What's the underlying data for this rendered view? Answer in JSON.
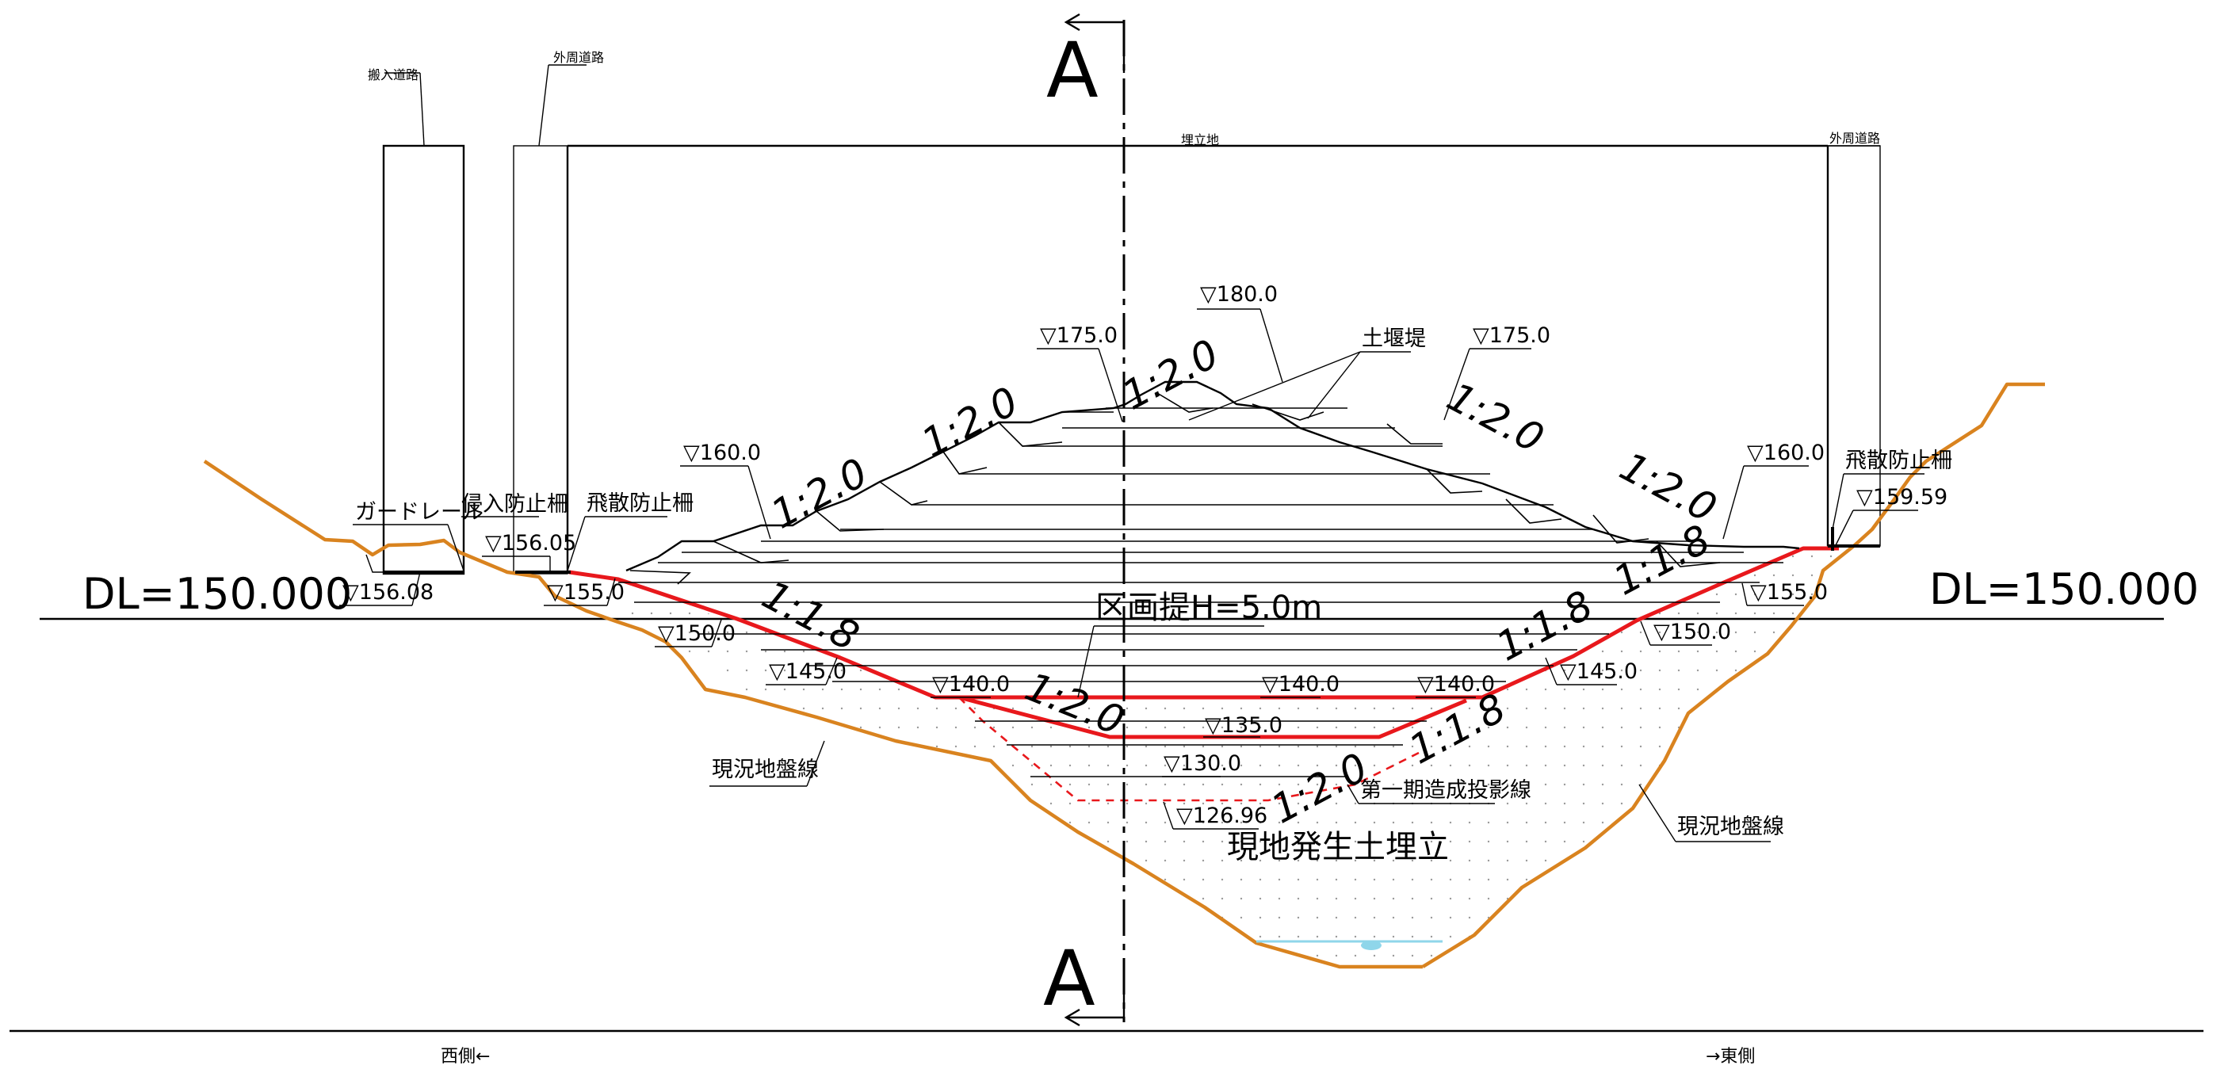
{
  "section_mark": "A",
  "datum": {
    "left": "DL=150.000",
    "right": "DL=150.000"
  },
  "directions": {
    "west": "西側←",
    "east": "→東側"
  },
  "roads": {
    "access_road": "搬入道路",
    "outer_road_left": "外周道路",
    "landfill": "埋立地",
    "outer_road_right": "外周道路"
  },
  "facilities": {
    "guardrail": "ガードレール",
    "intrusion_fence": "侵入防止柵",
    "scatter_fence_left": "飛散防止柵",
    "scatter_fence_right": "飛散防止柵",
    "earth_dam": "土堰堤",
    "partition_dike": "区画提H=5.0m",
    "phase1_line": "第一期造成投影線",
    "fill_label": "現地発生土埋立",
    "ground_left": "現況地盤線",
    "ground_right": "現況地盤線"
  },
  "elevations": {
    "e156_08": "▽156.08",
    "e156_05": "▽156.05",
    "e155_left": "▽155.0",
    "e150_left": "▽150.0",
    "e145_left": "▽145.0",
    "e140_left": "▽140.0",
    "e140_mid": "▽140.0",
    "e140_right": "▽140.0",
    "e135": "▽135.0",
    "e130": "▽130.0",
    "e126_96": "▽126.96",
    "e160_left": "▽160.0",
    "e175_left": "▽175.0",
    "e180": "▽180.0",
    "e175_right": "▽175.0",
    "e160_right": "▽160.0",
    "e159_59": "▽159.59",
    "e155_right": "▽155.0",
    "e150_right": "▽150.0",
    "e145_right": "▽145.0"
  },
  "slopes": {
    "s1": "1:2.0",
    "s2": "1:2.0",
    "s3": "1:2.0",
    "s4": "1:2.0",
    "s5": "1:2.0",
    "s6": "1:1.8",
    "s7": "1:1.8",
    "s8": "1:1.8",
    "s9": "1:2.0",
    "s10": "1:1.8",
    "s11": "1:2.0"
  },
  "colors": {
    "ground_line": "#d9831f",
    "design_line": "#e8181c",
    "water": "#8fd6ea"
  }
}
